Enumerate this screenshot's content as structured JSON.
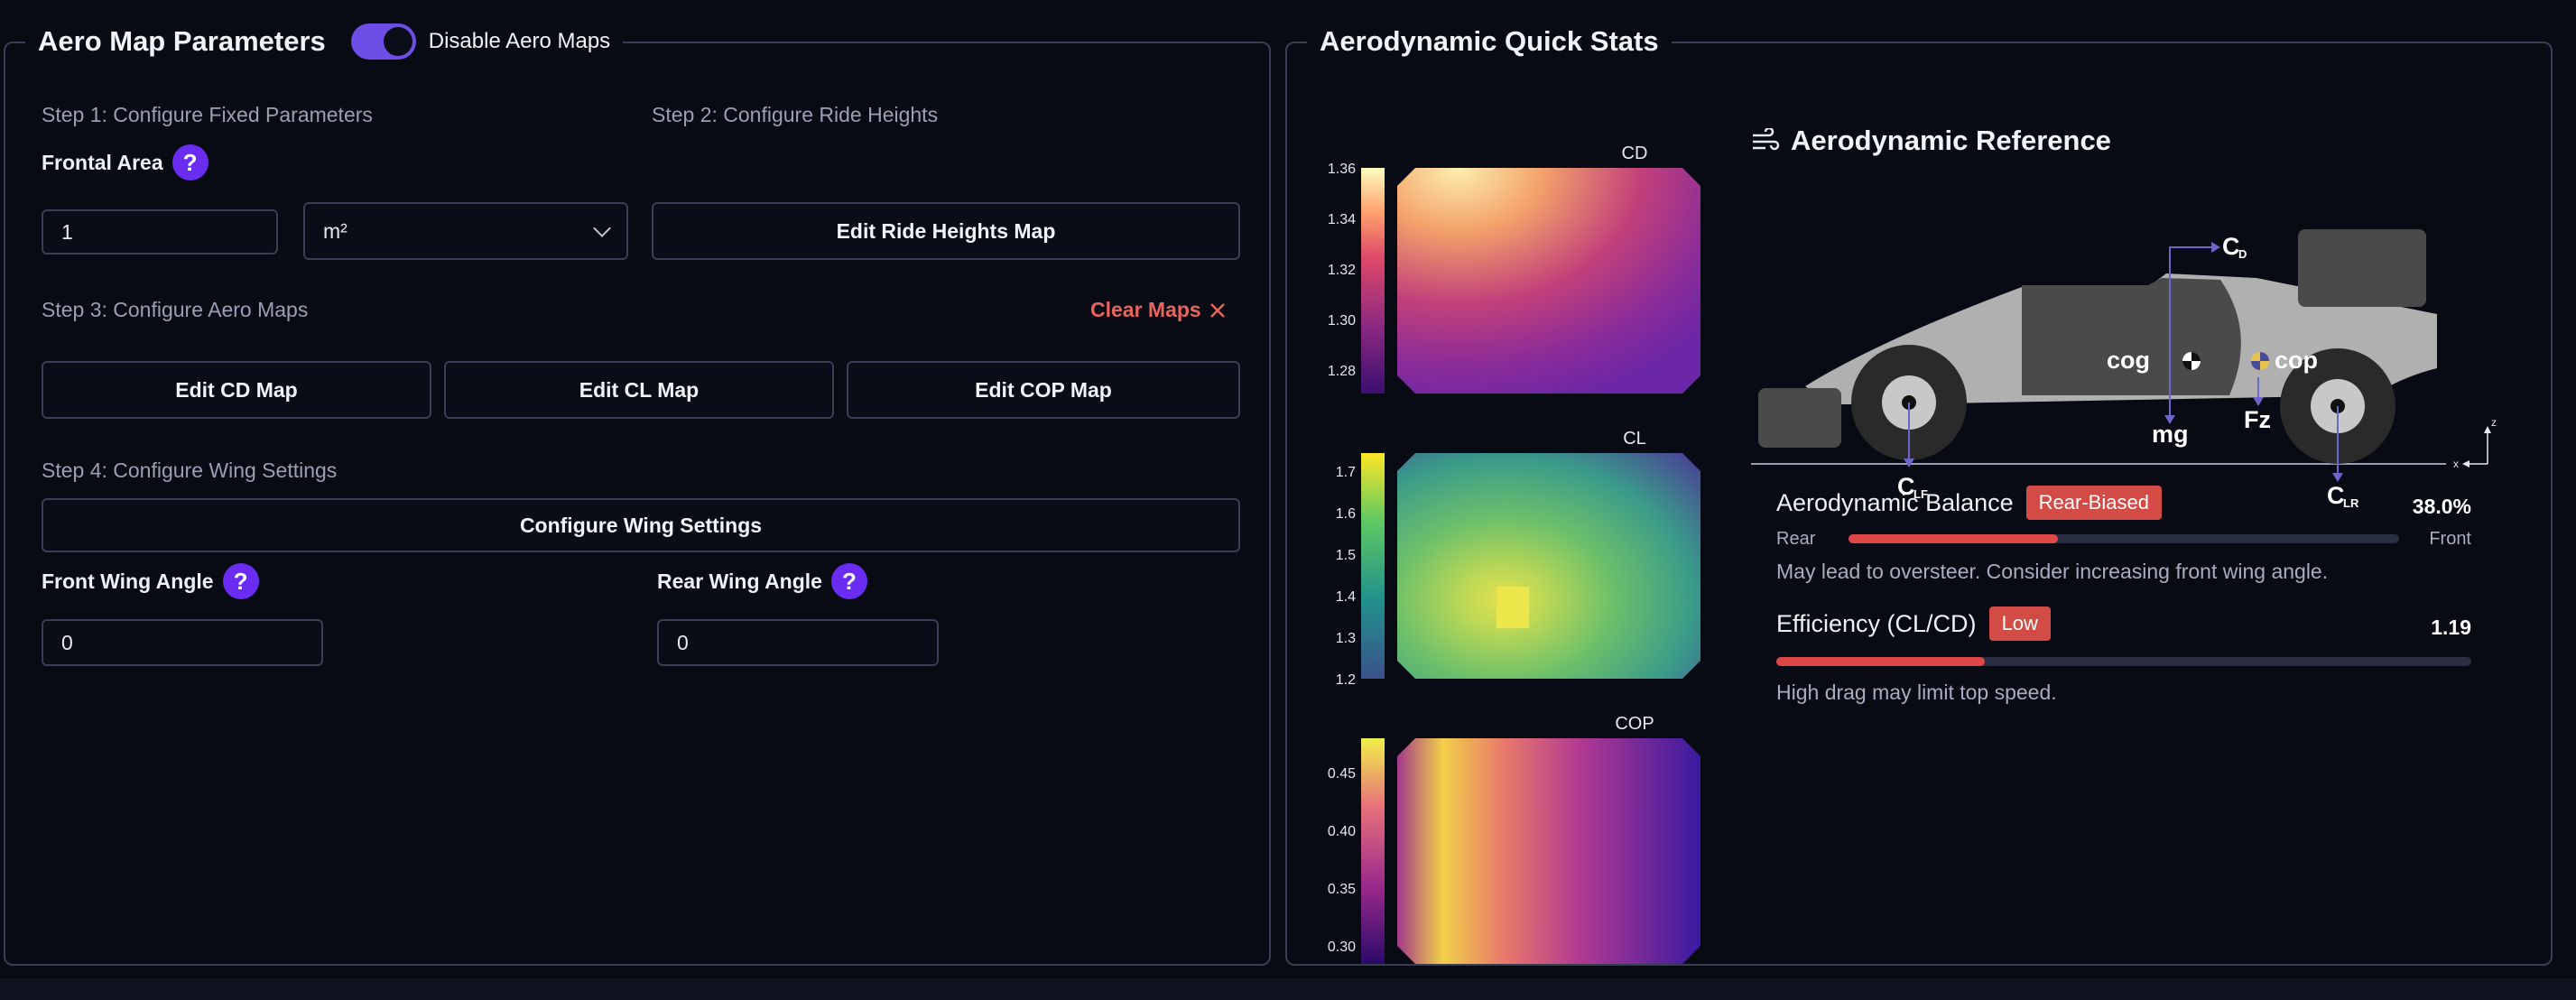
{
  "left_panel": {
    "title": "Aero Map Parameters",
    "toggle_label": "Disable Aero Maps",
    "step1": "Step 1: Configure Fixed Parameters",
    "step2": "Step 2: Configure Ride Heights",
    "frontal_area_label": "Frontal Area",
    "frontal_area_value": "1",
    "unit_value": "m²",
    "edit_ride_heights": "Edit Ride Heights Map",
    "step3": "Step 3: Configure Aero Maps",
    "clear_maps": "Clear Maps",
    "edit_cd": "Edit CD Map",
    "edit_cl": "Edit CL Map",
    "edit_cop": "Edit COP Map",
    "step4": "Step 4: Configure Wing Settings",
    "configure_wing": "Configure Wing Settings",
    "front_wing_label": "Front Wing Angle",
    "front_wing_value": "0",
    "rear_wing_label": "Rear Wing Angle",
    "rear_wing_value": "0",
    "help_glyph": "?"
  },
  "right_panel": {
    "title": "Aerodynamic Quick Stats",
    "reference_title": "Aerodynamic Reference",
    "diagram_labels": {
      "cd": "C",
      "cd_sub": "D",
      "cog": "cog",
      "cop": "cop",
      "mg": "mg",
      "fz": "Fz",
      "clf": "C",
      "clf_sub": "LF",
      "clr": "C",
      "clr_sub": "LR",
      "axis_x": "x",
      "axis_z": "z"
    },
    "balance": {
      "label": "Aerodynamic Balance",
      "badge": "Rear-Biased",
      "value": "38.0%",
      "fraction": 0.38,
      "left_label": "Rear",
      "right_label": "Front",
      "note": "May lead to oversteer. Consider increasing front wing angle."
    },
    "efficiency": {
      "label": "Efficiency (CL/CD)",
      "badge": "Low",
      "value": "1.19",
      "fraction": 0.3,
      "note": "High drag may limit top speed."
    }
  },
  "chart_data": [
    {
      "type": "heatmap",
      "title": "CD",
      "colorbar_ticks": [
        "1.36",
        "1.34",
        "1.32",
        "1.30",
        "1.28"
      ]
    },
    {
      "type": "heatmap",
      "title": "CL",
      "colorbar_ticks": [
        "1.7",
        "1.6",
        "1.5",
        "1.4",
        "1.3",
        "1.2"
      ]
    },
    {
      "type": "heatmap",
      "title": "COP",
      "colorbar_ticks": [
        "0.45",
        "0.40",
        "0.35",
        "0.30"
      ]
    }
  ],
  "colors": {
    "accent": "#6d4ee6",
    "danger": "#d24b45",
    "border": "#3a3e52"
  }
}
